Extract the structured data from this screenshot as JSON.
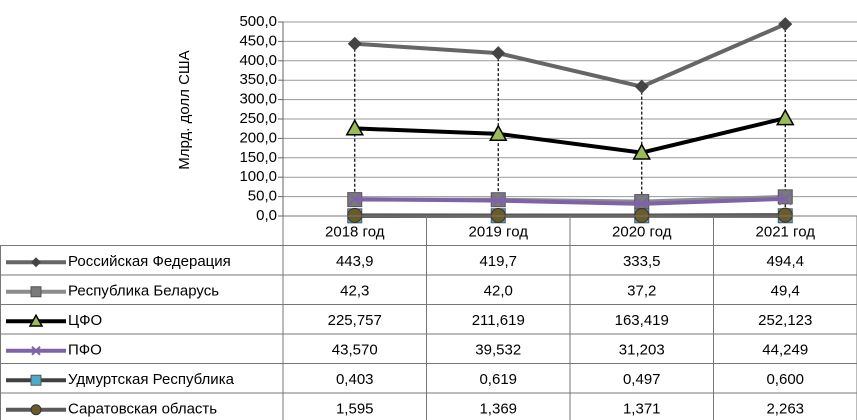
{
  "chart_data": {
    "type": "line",
    "ylabel": "Млрд. долл США",
    "categories": [
      "2018 год",
      "2019 год",
      "2020 год",
      "2021 год"
    ],
    "ylim": [
      0,
      500
    ],
    "yticks": [
      {
        "value": 0,
        "label": "0,0"
      },
      {
        "value": 50,
        "label": "50,0"
      },
      {
        "value": 100,
        "label": "100,0"
      },
      {
        "value": 150,
        "label": "150,0"
      },
      {
        "value": 200,
        "label": "200,0"
      },
      {
        "value": 250,
        "label": "250,0"
      },
      {
        "value": 300,
        "label": "300,0"
      },
      {
        "value": 350,
        "label": "350,0"
      },
      {
        "value": 400,
        "label": "400,0"
      },
      {
        "value": 450,
        "label": "450,0"
      },
      {
        "value": 500,
        "label": "500,0"
      }
    ],
    "grid": true,
    "drop_lines": true,
    "series": [
      {
        "name": "Российская Федерация",
        "color": "#666666",
        "marker": "diamond",
        "marker_color": "#444444",
        "values": [
          443.9,
          419.7,
          333.5,
          494.4
        ],
        "value_labels": [
          "443,9",
          "419,7",
          "333,5",
          "494,4"
        ]
      },
      {
        "name": "Республика Беларусь",
        "color": "#8c8c8c",
        "marker": "square",
        "marker_color": "#7a7a7a",
        "values": [
          42.3,
          42.0,
          37.2,
          49.4
        ],
        "value_labels": [
          "42,3",
          "42,0",
          "37,2",
          "49,4"
        ]
      },
      {
        "name": "ЦФО",
        "color": "#000000",
        "marker": "triangle",
        "marker_color": "#9bbb59",
        "values": [
          225.757,
          211.619,
          163.419,
          252.123
        ],
        "value_labels": [
          "225,757",
          "211,619",
          "163,419",
          "252,123"
        ]
      },
      {
        "name": "ПФО",
        "color": "#7f63a8",
        "marker": "x",
        "marker_color": "#7f63a8",
        "values": [
          43.57,
          39.532,
          31.203,
          44.249
        ],
        "value_labels": [
          "43,570",
          "39,532",
          "31,203",
          "44,249"
        ]
      },
      {
        "name": "Удмуртская Республика",
        "color": "#404040",
        "marker": "square",
        "marker_color": "#4bacc6",
        "values": [
          0.403,
          0.619,
          0.497,
          0.6
        ],
        "value_labels": [
          "0,403",
          "0,619",
          "0,497",
          "0,600"
        ]
      },
      {
        "name": "Саратовская область",
        "color": "#595959",
        "marker": "circle",
        "marker_color": "#6b5a2a",
        "values": [
          1.595,
          1.369,
          1.371,
          2.263
        ],
        "value_labels": [
          "1,595",
          "1,369",
          "1,371",
          "2,263"
        ]
      }
    ]
  }
}
